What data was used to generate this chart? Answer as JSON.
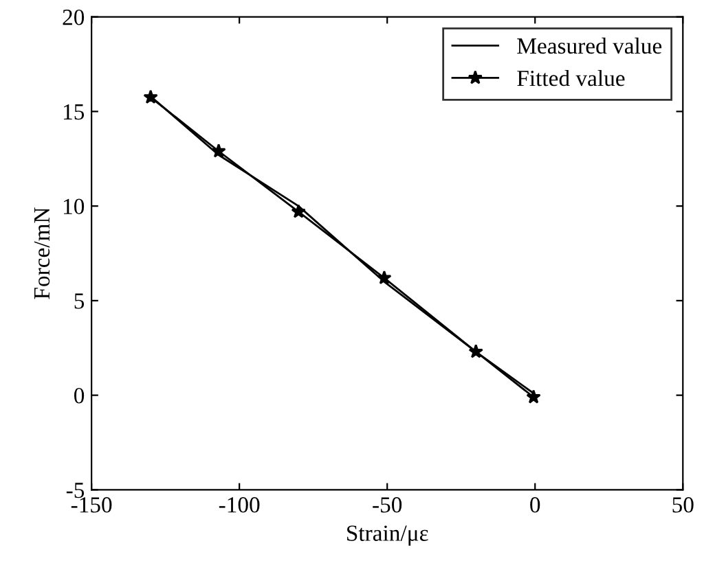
{
  "chart_data": {
    "type": "line",
    "xlabel": "Strain/με",
    "ylabel": "Force/mN",
    "xlim": [
      -150,
      50
    ],
    "xticks": [
      -150,
      -100,
      -50,
      0,
      50
    ],
    "ylim": [
      -5,
      20
    ],
    "yticks": [
      -5,
      0,
      5,
      10,
      15,
      20
    ],
    "grid": false,
    "legend": "top right",
    "series": [
      {
        "name": "Measured value",
        "color": "#000000",
        "marker": "none",
        "x": [
          -130,
          -107,
          -80,
          -51,
          -20,
          -0.5
        ],
        "values": [
          15.8,
          12.7,
          10.0,
          6.0,
          2.3,
          0.1
        ]
      },
      {
        "name": "Fitted value",
        "color": "#000000",
        "marker": "star",
        "x": [
          -130,
          -107,
          -80,
          -51,
          -20,
          -0.5
        ],
        "values": [
          15.75,
          12.9,
          9.7,
          6.2,
          2.3,
          -0.1
        ]
      }
    ]
  }
}
